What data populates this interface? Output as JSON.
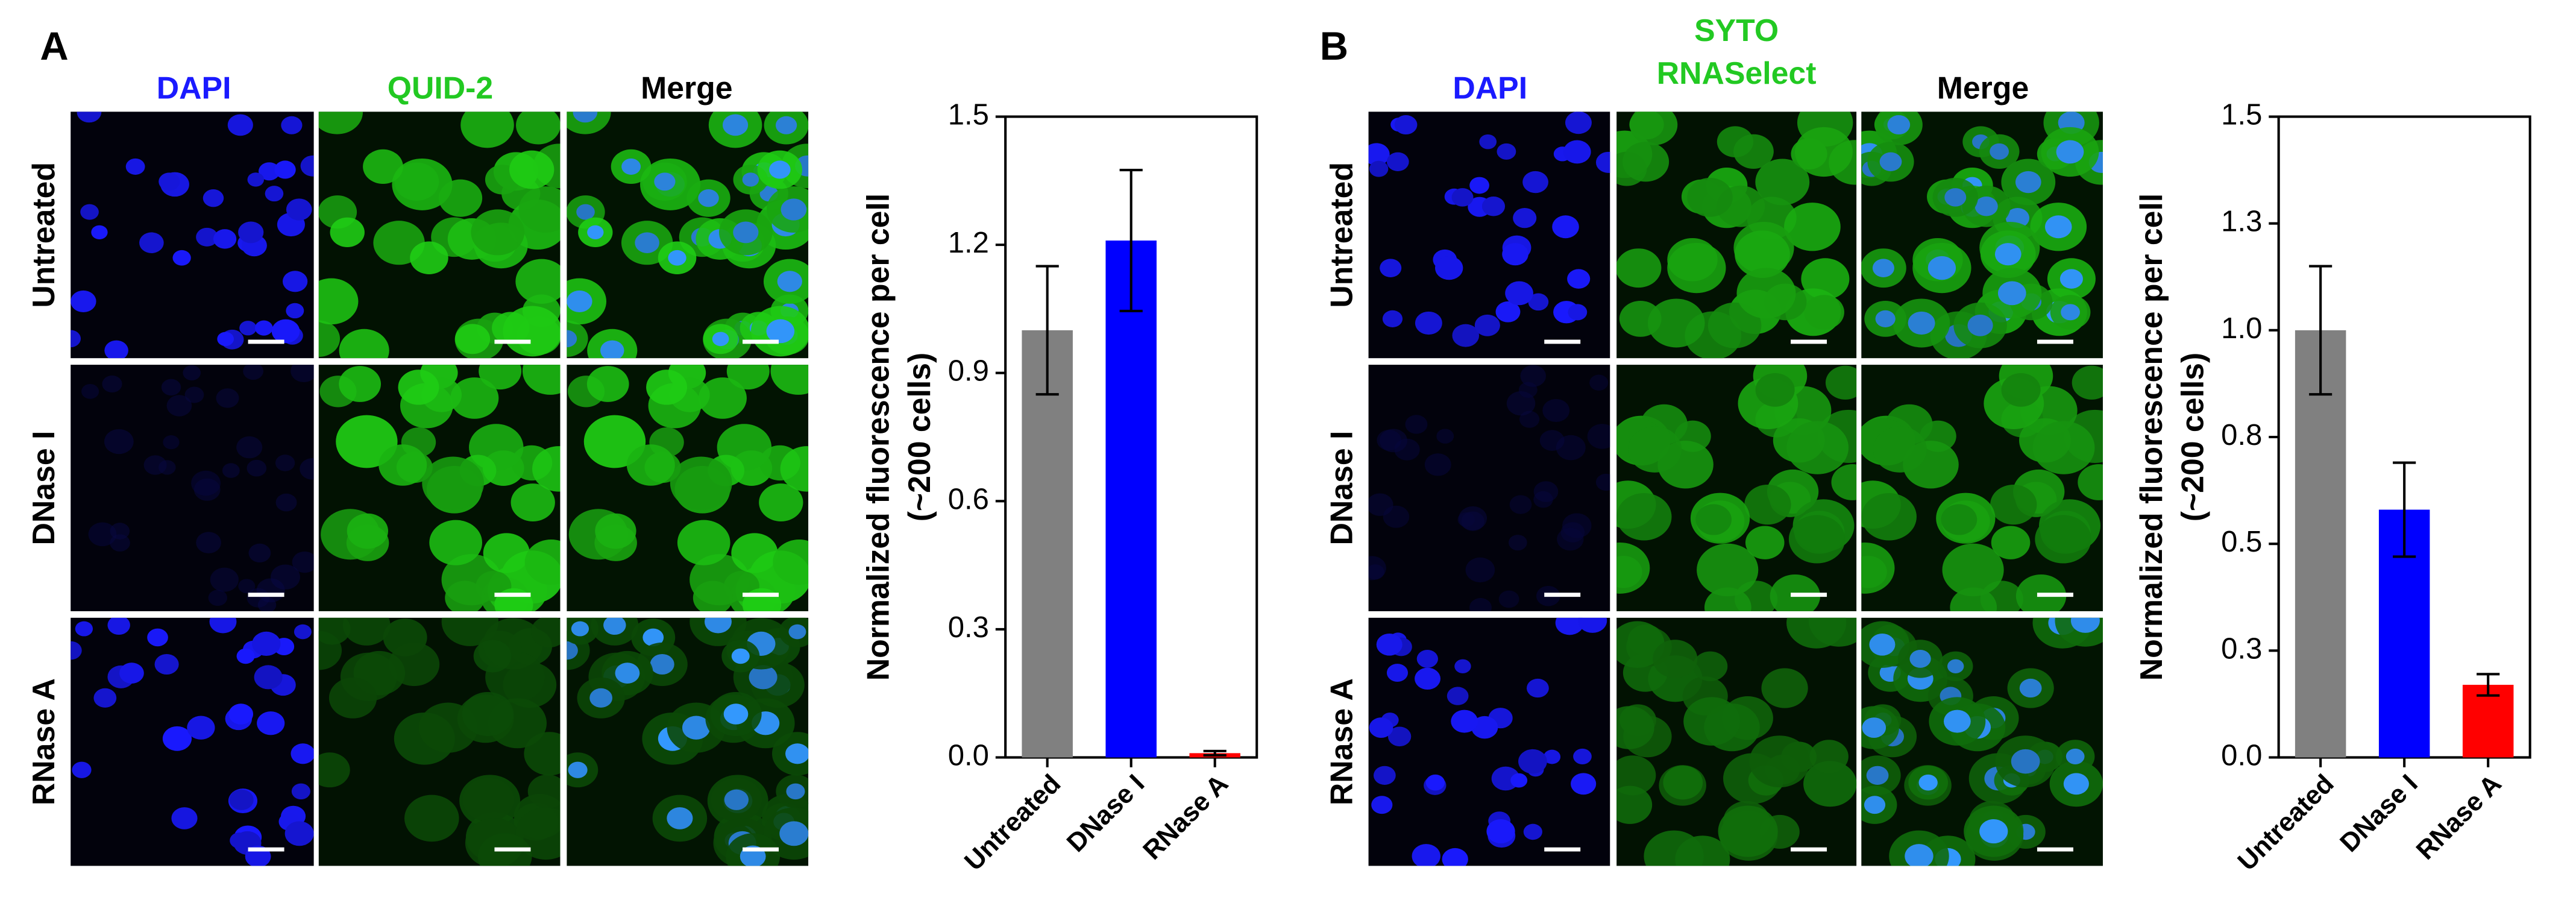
{
  "panels": [
    {
      "label": "A",
      "column_headers": [
        [
          "DAPI"
        ],
        [
          "QUID-2"
        ],
        [
          "Merge"
        ]
      ],
      "row_labels": [
        "Untreated",
        "DNase I",
        "RNase A"
      ]
    },
    {
      "label": "B",
      "column_headers": [
        [
          "DAPI"
        ],
        [
          "SYTO",
          "RNASelect"
        ],
        [
          "Merge"
        ]
      ],
      "row_labels": [
        "Untreated",
        "DNase I",
        "RNase A"
      ]
    }
  ],
  "chart_data": [
    {
      "type": "bar",
      "ylabel": [
        "Normalized fluorescence per cell",
        "(~200 cells)"
      ],
      "categories": [
        "Untreated",
        "DNase I",
        "RNase A"
      ],
      "values": [
        1.0,
        1.21,
        0.01
      ],
      "errors": [
        0.15,
        0.165,
        0.005
      ],
      "colors": [
        "#808080",
        "#0000ff",
        "#ff0000"
      ],
      "ylim": [
        0,
        1.5
      ],
      "yticks": [
        {
          "value": 0,
          "label": "0.0"
        },
        0.3,
        0.6,
        0.9,
        1.2,
        1.5
      ]
    },
    {
      "type": "bar",
      "ylabel": [
        "Normalized fluorescence per cell",
        "(~200 cells)"
      ],
      "categories": [
        "Untreated",
        "DNase I",
        "RNase A"
      ],
      "values": [
        1.0,
        0.58,
        0.17
      ],
      "errors": [
        0.15,
        0.11,
        0.025
      ],
      "colors": [
        "#808080",
        "#0000ff",
        "#ff0000"
      ],
      "ylim": [
        0,
        1.5
      ],
      "yticks": [
        {
          "value": 0,
          "label": "0.0"
        },
        {
          "value": 0.25,
          "label": "0.3"
        },
        0.5,
        {
          "value": 0.75,
          "label": "0.8"
        },
        {
          "value": 1,
          "label": "1.0"
        },
        {
          "value": 1.25,
          "label": "1.3"
        },
        1.5
      ]
    }
  ]
}
